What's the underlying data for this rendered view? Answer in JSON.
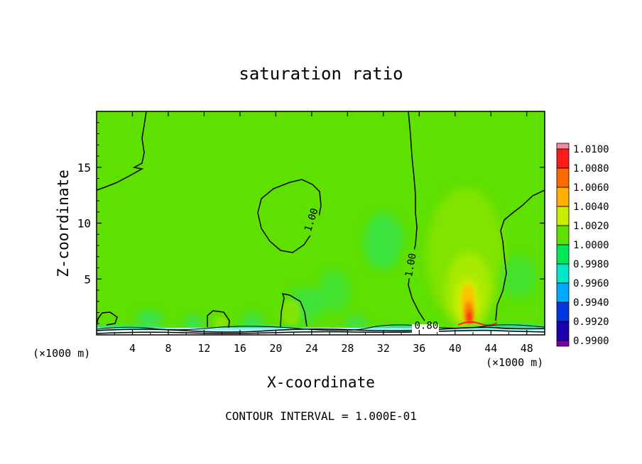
{
  "chart_data": {
    "type": "heatmap",
    "title": "saturation ratio",
    "xlabel": "X-coordinate",
    "ylabel": "Z-coordinate",
    "x_unit_left": "(×1000 m)",
    "x_unit_right": "(×1000 m)",
    "xlim": [
      0,
      50
    ],
    "ylim": [
      0,
      20
    ],
    "x_ticks": [
      4,
      8,
      12,
      16,
      20,
      24,
      28,
      32,
      36,
      40,
      44,
      48
    ],
    "y_ticks": [
      5,
      10,
      15
    ],
    "footer": "CONTOUR INTERVAL = 1.000E-01",
    "contour_labels": [
      {
        "text": "1.00",
        "x": 24.3,
        "z": 10.2,
        "rot": -72
      },
      {
        "text": "1.00",
        "x": 35.4,
        "z": 6.2,
        "rot": -80
      },
      {
        "text": "0.80",
        "x": 36.8,
        "z": 0.55,
        "rot": 0
      }
    ],
    "colorbar": {
      "levels": [
        "1.0100",
        "1.0080",
        "1.0060",
        "1.0040",
        "1.0020",
        "1.0000",
        "0.9980",
        "0.9960",
        "0.9940",
        "0.9920",
        "0.9900"
      ],
      "colors": [
        "#f28aa0",
        "#ff1a1a",
        "#ff6a00",
        "#ffb000",
        "#c8ee00",
        "#5ee000",
        "#00e858",
        "#00e8c8",
        "#00a8ff",
        "#0038e0",
        "#1a00b0",
        "#7a00a8"
      ]
    },
    "field_base_color": "#5ee000"
  }
}
